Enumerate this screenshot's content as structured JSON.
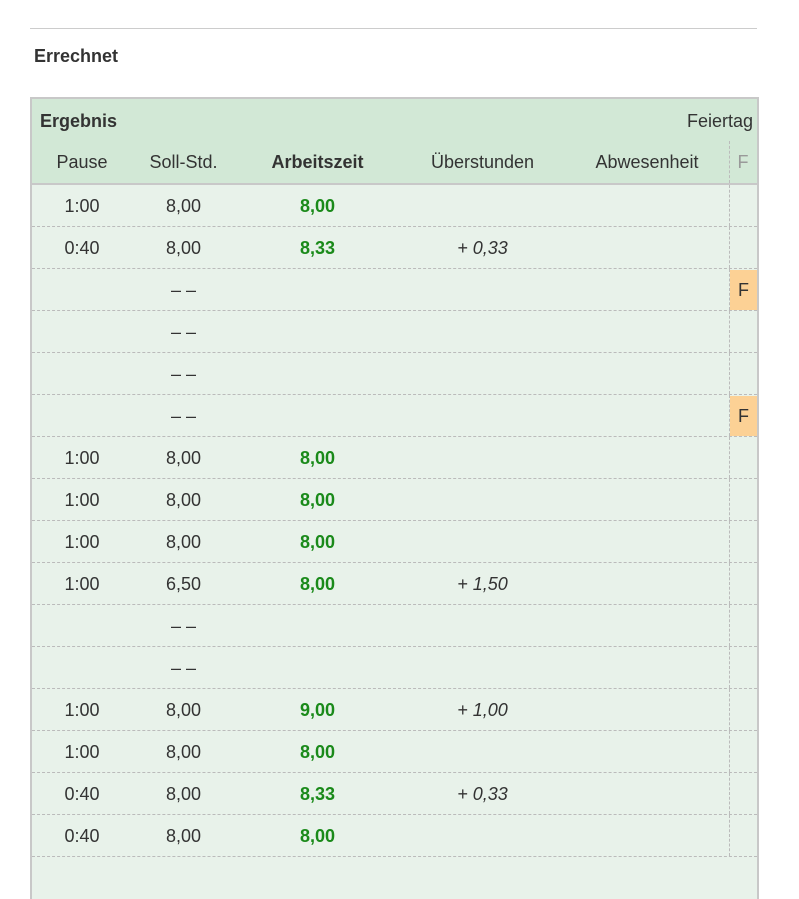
{
  "section": {
    "title": "Errechnet"
  },
  "table": {
    "title": "Ergebnis",
    "holiday_label": "Feiertag",
    "columns": [
      "Pause",
      "Soll-Std.",
      "Arbeitszeit",
      "Überstunden",
      "Abwesenheit",
      "F"
    ],
    "rows": [
      {
        "pause": "1:00",
        "soll": "8,00",
        "arbeit": "8,00",
        "ueber": "",
        "abw": "",
        "f": ""
      },
      {
        "pause": "0:40",
        "soll": "8,00",
        "arbeit": "8,33",
        "ueber": "+ 0,33",
        "abw": "",
        "f": ""
      },
      {
        "pause": "",
        "soll": "– –",
        "arbeit": "",
        "ueber": "",
        "abw": "",
        "f": "F"
      },
      {
        "pause": "",
        "soll": "– –",
        "arbeit": "",
        "ueber": "",
        "abw": "",
        "f": ""
      },
      {
        "pause": "",
        "soll": "– –",
        "arbeit": "",
        "ueber": "",
        "abw": "",
        "f": ""
      },
      {
        "pause": "",
        "soll": "– –",
        "arbeit": "",
        "ueber": "",
        "abw": "",
        "f": "F"
      },
      {
        "pause": "1:00",
        "soll": "8,00",
        "arbeit": "8,00",
        "ueber": "",
        "abw": "",
        "f": ""
      },
      {
        "pause": "1:00",
        "soll": "8,00",
        "arbeit": "8,00",
        "ueber": "",
        "abw": "",
        "f": ""
      },
      {
        "pause": "1:00",
        "soll": "8,00",
        "arbeit": "8,00",
        "ueber": "",
        "abw": "",
        "f": ""
      },
      {
        "pause": "1:00",
        "soll": "6,50",
        "arbeit": "8,00",
        "ueber": "+ 1,50",
        "abw": "",
        "f": ""
      },
      {
        "pause": "",
        "soll": "– –",
        "arbeit": "",
        "ueber": "",
        "abw": "",
        "f": ""
      },
      {
        "pause": "",
        "soll": "– –",
        "arbeit": "",
        "ueber": "",
        "abw": "",
        "f": ""
      },
      {
        "pause": "1:00",
        "soll": "8,00",
        "arbeit": "9,00",
        "ueber": "+ 1,00",
        "abw": "",
        "f": ""
      },
      {
        "pause": "1:00",
        "soll": "8,00",
        "arbeit": "8,00",
        "ueber": "",
        "abw": "",
        "f": ""
      },
      {
        "pause": "0:40",
        "soll": "8,00",
        "arbeit": "8,33",
        "ueber": "+ 0,33",
        "abw": "",
        "f": ""
      },
      {
        "pause": "0:40",
        "soll": "8,00",
        "arbeit": "8,00",
        "ueber": "",
        "abw": "",
        "f": ""
      }
    ]
  },
  "colors": {
    "header_bg": "#d2e8d6",
    "row_bg": "#e8f2ea",
    "work_green": "#1a8a1a",
    "holiday_badge": "#fcd195"
  }
}
